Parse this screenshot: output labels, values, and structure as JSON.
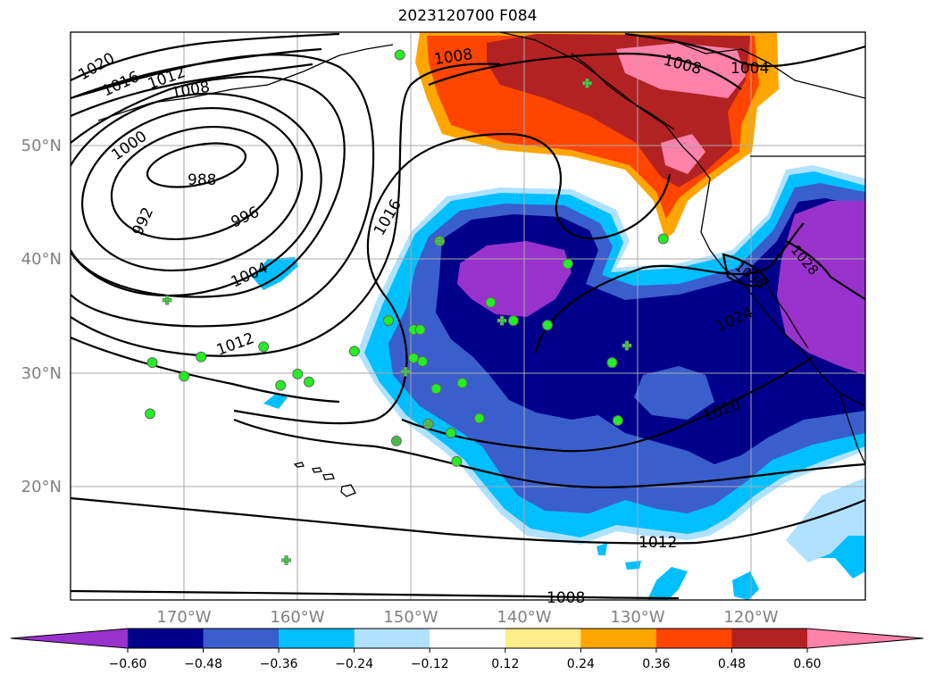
{
  "title": "2023120700 F084",
  "lat_labels": [
    "50°N",
    "40°N",
    "30°N",
    "20°N"
  ],
  "lon_labels": [
    "170°W",
    "160°W",
    "150°W",
    "140°W",
    "130°W",
    "120°W"
  ],
  "contour_labels": {
    "c1020_nw": "1020",
    "c1016_nw": "1016",
    "c1012_nw": "1012",
    "c1008_nw": "1008",
    "c1000": "1000",
    "c988": "988",
    "c992": "992",
    "c996": "996",
    "c1004_w": "1004",
    "c1012_w": "1012",
    "c1016_c": "1016",
    "c1008_n": "1008",
    "c1008_ne": "1008",
    "c1004_ne": "1004",
    "c1024": "1024",
    "c1020_e": "1020",
    "c1012_s": "1012",
    "c1008_s": "1008",
    "c1036": "1036",
    "c1028_e": "1028"
  },
  "colorbar": {
    "ticks": [
      "−0.60",
      "−0.48",
      "−0.36",
      "−0.24",
      "−0.12",
      "0.12",
      "0.24",
      "0.36",
      "0.48",
      "0.60"
    ],
    "colors": [
      "#9932cc",
      "#00008b",
      "#3a5fcd",
      "#00bfff",
      "#b0e2ff",
      "#ffffff",
      "#ffec8b",
      "#ffa500",
      "#ff4500",
      "#b22222",
      "#ff82ab"
    ]
  },
  "colors": {
    "marker_circle": "#22ee22",
    "marker_cross": "#33dd33",
    "grid": "#aaaaaa",
    "axis_label": "#808080"
  },
  "markers": {
    "circles": [
      [
        -147.5,
        41.6
      ],
      [
        -136.2,
        39.6
      ],
      [
        -143,
        36.2
      ],
      [
        -138,
        34.2
      ],
      [
        -141,
        34.6
      ],
      [
        -152,
        34.6
      ],
      [
        -149.8,
        33.8
      ],
      [
        -149.2,
        33.8
      ],
      [
        -132.3,
        30.9
      ],
      [
        -155,
        31.9
      ],
      [
        -145.5,
        29.1
      ],
      [
        -147.8,
        28.6
      ],
      [
        -149.8,
        31.3
      ],
      [
        -149,
        31
      ],
      [
        -163,
        32.3
      ],
      [
        -172.8,
        30.9
      ],
      [
        -168.5,
        31.4
      ],
      [
        -170,
        29.7
      ],
      [
        -160,
        29.9
      ],
      [
        -161.5,
        28.9
      ],
      [
        -159,
        29.2
      ],
      [
        -131.8,
        25.8
      ],
      [
        -144,
        26
      ],
      [
        -146.5,
        24.7
      ],
      [
        -148.5,
        25.5
      ],
      [
        -151.3,
        24
      ],
      [
        -146,
        22.2
      ],
      [
        -173,
        26.4
      ],
      [
        -127.8,
        41.8
      ],
      [
        -151,
        58
      ]
    ],
    "crosses": [
      [
        -134.5,
        55.5
      ],
      [
        -147.5,
        41.6
      ],
      [
        -142,
        34.6
      ],
      [
        -171.5,
        36.4
      ],
      [
        -131,
        32.4
      ],
      [
        -150.5,
        30.1
      ],
      [
        -148.5,
        25.5
      ],
      [
        -151.3,
        24
      ],
      [
        -161,
        13.5
      ]
    ]
  }
}
